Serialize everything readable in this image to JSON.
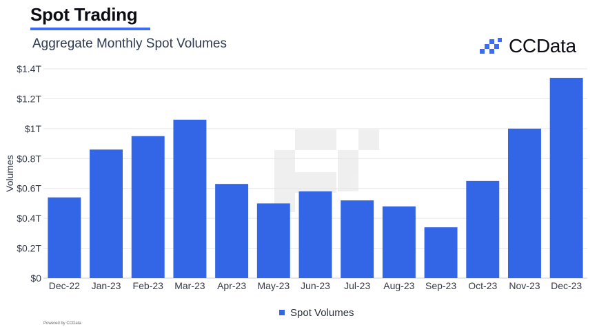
{
  "header": {
    "title": "Spot Trading",
    "subtitle": "Aggregate Monthly Spot Volumes",
    "brand": "CCData"
  },
  "footer": {
    "note": "Powered by CCData"
  },
  "colors": {
    "bar": "#3366e6",
    "accent": "#3b6cf2",
    "grid": "#e4e6ea"
  },
  "chart_data": {
    "type": "bar",
    "categories": [
      "Dec-22",
      "Jan-23",
      "Feb-23",
      "Mar-23",
      "Apr-23",
      "May-23",
      "Jun-23",
      "Jul-23",
      "Aug-23",
      "Sep-23",
      "Oct-23",
      "Nov-23",
      "Dec-23"
    ],
    "series": [
      {
        "name": "Spot Volumes",
        "values": [
          0.54,
          0.86,
          0.95,
          1.06,
          0.63,
          0.5,
          0.58,
          0.52,
          0.48,
          0.34,
          0.65,
          1.0,
          1.34
        ]
      }
    ],
    "ylabel": "Volumes",
    "ylim": [
      0,
      1.4
    ],
    "yticks": [
      0,
      0.2,
      0.4,
      0.6,
      0.8,
      1.0,
      1.2,
      1.4
    ],
    "ytick_labels": [
      "$0",
      "$0.2T",
      "$0.4T",
      "$0.6T",
      "$0.8T",
      "$1T",
      "$1.2T",
      "$1.4T"
    ],
    "grid": true,
    "legend": "bottom-center"
  }
}
